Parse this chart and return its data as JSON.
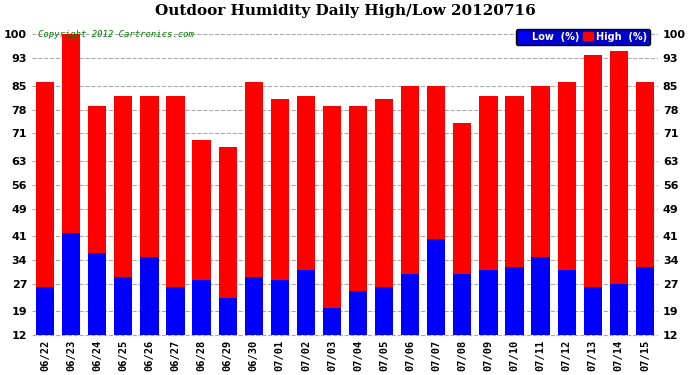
{
  "title": "Outdoor Humidity Daily High/Low 20120716",
  "copyright": "Copyright 2012 Cartronics.com",
  "background_color": "#ffffff",
  "plot_background": "#ffffff",
  "categories": [
    "06/22",
    "06/23",
    "06/24",
    "06/25",
    "06/26",
    "06/27",
    "06/28",
    "06/29",
    "06/30",
    "07/01",
    "07/02",
    "07/03",
    "07/04",
    "07/05",
    "07/06",
    "07/07",
    "07/08",
    "07/09",
    "07/10",
    "07/11",
    "07/12",
    "07/13",
    "07/14",
    "07/15"
  ],
  "high_values": [
    86,
    100,
    79,
    82,
    82,
    82,
    69,
    67,
    86,
    81,
    82,
    79,
    79,
    81,
    85,
    85,
    74,
    82,
    82,
    85,
    86,
    94,
    95,
    86
  ],
  "low_values": [
    26,
    42,
    36,
    29,
    35,
    26,
    28,
    23,
    29,
    28,
    31,
    20,
    25,
    26,
    30,
    40,
    30,
    31,
    32,
    35,
    31,
    26,
    27,
    32
  ],
  "high_color": "#ff0000",
  "low_color": "#0000ff",
  "grid_color": "#aaaaaa",
  "yticks": [
    12,
    19,
    27,
    34,
    41,
    49,
    56,
    63,
    71,
    78,
    85,
    93,
    100
  ],
  "ymin": 12,
  "ymax": 104,
  "bar_width": 0.7,
  "legend_low_label": "Low  (%)",
  "legend_high_label": "High  (%)"
}
